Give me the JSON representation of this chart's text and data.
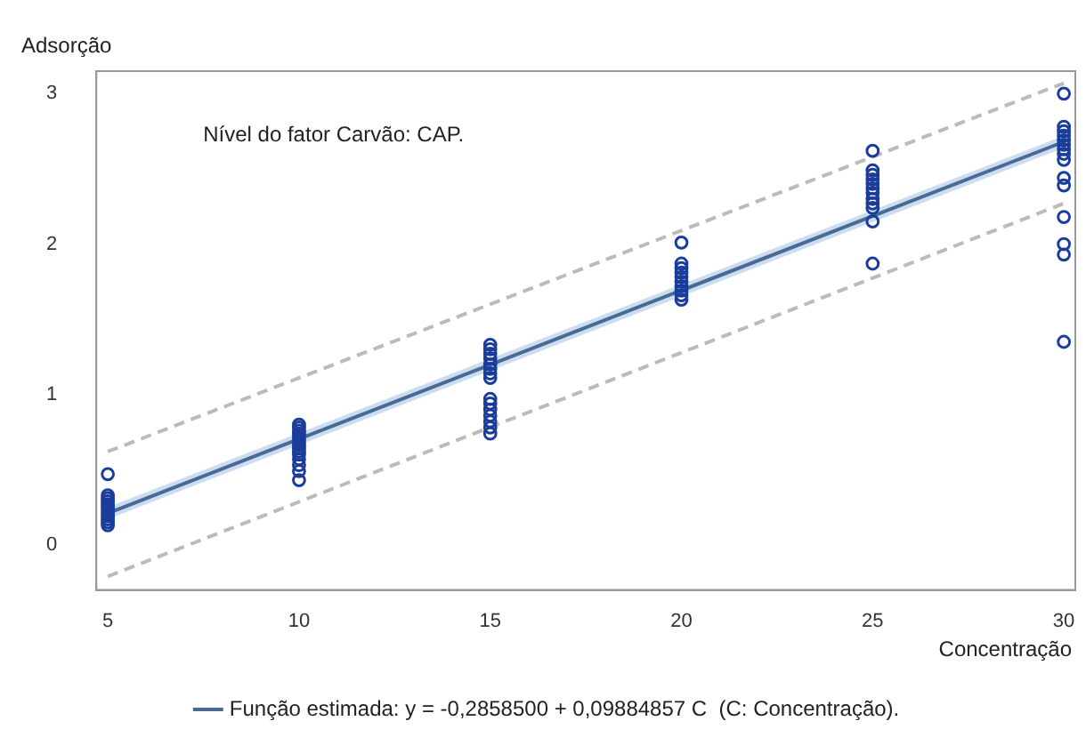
{
  "chart_data": {
    "type": "scatter",
    "xlabel": "Concentração",
    "ylabel": "Adsorção",
    "annotations": [
      "Nível do fator Carvão: CAP."
    ],
    "xlim": [
      4.7,
      30.3
    ],
    "xticks": [
      5,
      10,
      15,
      20,
      25,
      30
    ],
    "ylim": [
      -0.3,
      3.15
    ],
    "yticks": [
      0,
      1,
      2,
      3
    ],
    "grid": false,
    "legend": "bottom",
    "series": [
      {
        "color": "#1a3d9c",
        "marker": "circle",
        "x": [
          5,
          5,
          5,
          5,
          5,
          5,
          5,
          5,
          5,
          5,
          5,
          5,
          10,
          10,
          10,
          10,
          10,
          10,
          10,
          10,
          10,
          10,
          10,
          10,
          10,
          10,
          10,
          15,
          15,
          15,
          15,
          15,
          15,
          15,
          15,
          15,
          15,
          15,
          15,
          15,
          15,
          15,
          20,
          20,
          20,
          20,
          20,
          20,
          20,
          20,
          20,
          20,
          25,
          25,
          25,
          25,
          25,
          25,
          25,
          25,
          25,
          25,
          25,
          25,
          30,
          30,
          30,
          30,
          30,
          30,
          30,
          30,
          30,
          30,
          30,
          30,
          30,
          30,
          30
        ],
        "values": [
          0.47,
          0.33,
          0.31,
          0.29,
          0.27,
          0.25,
          0.23,
          0.21,
          0.19,
          0.17,
          0.15,
          0.13,
          0.8,
          0.78,
          0.76,
          0.74,
          0.72,
          0.7,
          0.68,
          0.66,
          0.64,
          0.62,
          0.6,
          0.57,
          0.53,
          0.49,
          0.43,
          1.33,
          1.3,
          1.27,
          1.24,
          1.2,
          1.17,
          1.14,
          1.11,
          0.97,
          0.94,
          0.9,
          0.86,
          0.82,
          0.78,
          0.74,
          2.01,
          1.87,
          1.84,
          1.81,
          1.78,
          1.75,
          1.72,
          1.69,
          1.66,
          1.63,
          2.62,
          2.49,
          2.46,
          2.43,
          2.4,
          2.37,
          2.34,
          2.3,
          2.27,
          2.24,
          2.15,
          1.87,
          3.0,
          2.78,
          2.75,
          2.72,
          2.69,
          2.66,
          2.63,
          2.6,
          2.56,
          2.44,
          2.39,
          2.18,
          2.0,
          1.93,
          1.35
        ]
      },
      {
        "type": "line",
        "name": "Função estimada: y = -0,2858500 + 0,09884857 C  (C: Concentração).",
        "color": "#4a6a94",
        "marker": "none",
        "line_style": "solid",
        "x": [
          5,
          30
        ],
        "values": [
          0.21,
          2.68
        ],
        "lower": [
          0.17,
          2.64
        ],
        "upper": [
          0.25,
          2.72
        ]
      },
      {
        "type": "line",
        "color": "#bbbbbb",
        "marker": "none",
        "line_style": "dashed",
        "x": [
          5,
          30
        ],
        "values": [
          -0.21,
          2.27
        ]
      },
      {
        "type": "line",
        "color": "#bbbbbb",
        "marker": "none",
        "line_style": "dashed",
        "x": [
          5,
          30
        ],
        "values": [
          0.62,
          3.07
        ]
      }
    ]
  }
}
